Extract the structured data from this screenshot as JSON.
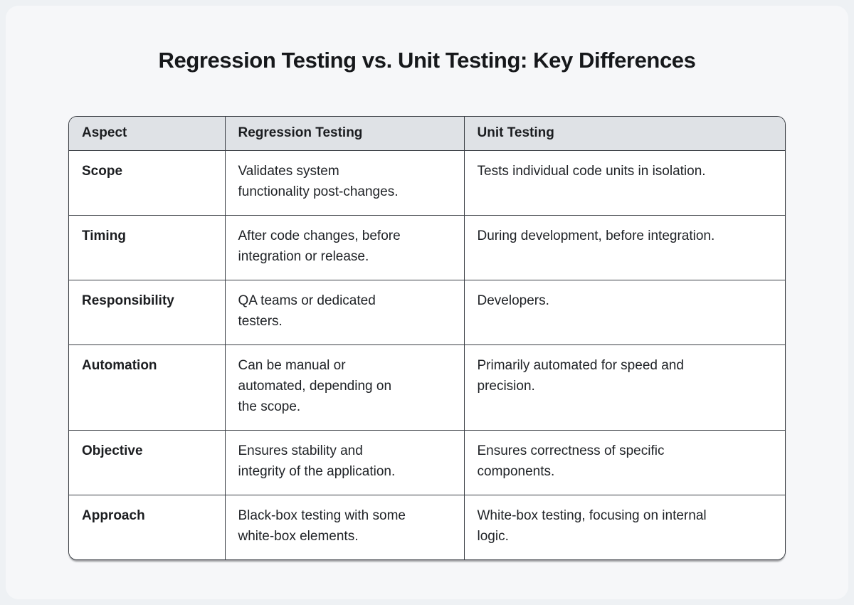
{
  "page": {
    "title": "Regression Testing vs. Unit Testing: Key Differences"
  },
  "table": {
    "headers": [
      "Aspect",
      "Regression Testing",
      "Unit Testing"
    ],
    "rows": [
      {
        "aspect": "Scope",
        "regression": "Validates system\nfunctionality post-changes.",
        "unit": "Tests individual code units in isolation."
      },
      {
        "aspect": "Timing",
        "regression": "After code changes, before\nintegration or release.",
        "unit": "During development, before integration."
      },
      {
        "aspect": "Responsibility",
        "regression": "QA teams or dedicated\ntesters.",
        "unit": "Developers."
      },
      {
        "aspect": "Automation",
        "regression": "Can be manual or\nautomated, depending on\nthe scope.",
        "unit": "Primarily automated for speed and\nprecision."
      },
      {
        "aspect": "Objective",
        "regression": "Ensures stability and\nintegrity of the application.",
        "unit": "Ensures correctness of specific\ncomponents."
      },
      {
        "aspect": "Approach",
        "regression": "Black-box testing with some\nwhite-box elements.",
        "unit": "White-box testing, focusing on internal\nlogic."
      }
    ],
    "colors": {
      "page_background": "#eef1f4",
      "card_background": "#f6f7f9",
      "header_background": "#dfe2e6",
      "cell_background": "#ffffff",
      "border": "#3a3e44",
      "title_text": "#16181b",
      "body_text": "#202327"
    }
  }
}
